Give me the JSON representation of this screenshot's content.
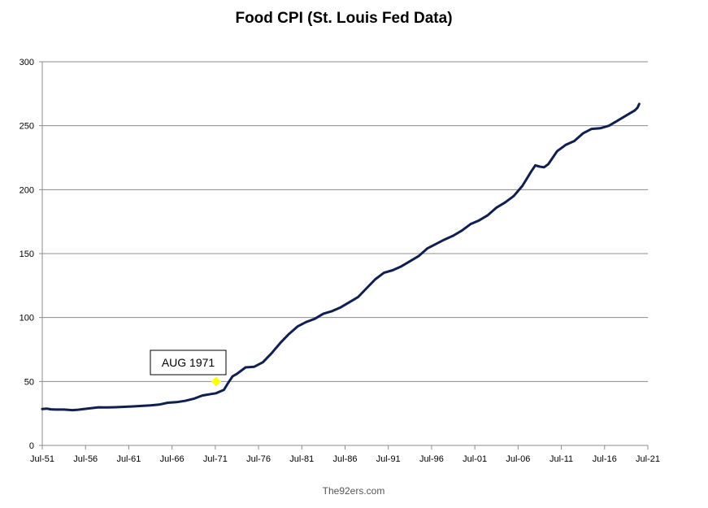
{
  "chart_data": {
    "type": "line",
    "title": "Food CPI (St. Louis Fed Data)",
    "xlabel": "",
    "ylabel": "",
    "ylim": [
      0,
      300
    ],
    "yticks": [
      0,
      50,
      100,
      150,
      200,
      250,
      300
    ],
    "xlim": [
      1951.5,
      2021.5
    ],
    "xticks": [
      "Jul-51",
      "Jul-56",
      "Jul-61",
      "Jul-66",
      "Jul-71",
      "Jul-76",
      "Jul-81",
      "Jul-86",
      "Jul-91",
      "Jul-96",
      "Jul-01",
      "Jul-06",
      "Jul-11",
      "Jul-16",
      "Jul-21"
    ],
    "grid": true,
    "legend": "none",
    "line_color": "#0f1f52",
    "series": [
      {
        "x": [
          1951.5,
          1952.0,
          1952.5,
          1953.0,
          1954.0,
          1955.0,
          1955.5,
          1956.0,
          1957.0,
          1958.0,
          1959.0,
          1960.0,
          1961.0,
          1962.0,
          1963.0,
          1964.0,
          1965.0,
          1966.0,
          1967.0,
          1968.0,
          1969.0,
          1970.0,
          1971.0,
          1971.6,
          1972.0,
          1972.5,
          1973.0,
          1973.5,
          1974.0,
          1974.5,
          1975.0,
          1976.0,
          1977.0,
          1978.0,
          1979.0,
          1980.0,
          1981.0,
          1982.0,
          1983.0,
          1984.0,
          1985.0,
          1986.0,
          1987.0,
          1988.0,
          1989.0,
          1990.0,
          1991.0,
          1992.0,
          1993.0,
          1994.0,
          1995.0,
          1996.0,
          1997.0,
          1998.0,
          1999.0,
          2000.0,
          2001.0,
          2002.0,
          2003.0,
          2004.0,
          2005.0,
          2006.0,
          2007.0,
          2008.0,
          2008.5,
          2009.0,
          2009.5,
          2010.0,
          2011.0,
          2012.0,
          2013.0,
          2014.0,
          2015.0,
          2016.0,
          2017.0,
          2018.0,
          2019.0,
          2020.0,
          2020.3,
          2020.5
        ],
        "values": [
          28.5,
          28.8,
          28.2,
          28.0,
          28.0,
          27.6,
          27.8,
          28.2,
          29.0,
          29.8,
          29.7,
          29.9,
          30.2,
          30.5,
          30.9,
          31.3,
          31.9,
          33.4,
          33.8,
          34.8,
          36.5,
          39.0,
          40.2,
          40.8,
          42.0,
          43.5,
          49.0,
          54.0,
          56.0,
          58.5,
          61.0,
          61.5,
          65.0,
          72.0,
          80.0,
          87.0,
          93.0,
          96.5,
          99.0,
          103.0,
          105.0,
          108.0,
          112.0,
          116.0,
          123.0,
          130.0,
          135.0,
          137.0,
          140.0,
          144.0,
          148.0,
          154.0,
          157.5,
          161.0,
          164.0,
          168.0,
          173.0,
          176.0,
          180.0,
          186.0,
          190.0,
          195.0,
          203.0,
          214.0,
          219.0,
          218.0,
          217.5,
          220.0,
          230.0,
          235.0,
          238.0,
          244.0,
          247.5,
          248.0,
          250.0,
          254.0,
          258.0,
          262.0,
          264.0,
          267.0
        ]
      }
    ],
    "annotations": [
      {
        "label": "AUG 1971",
        "x": 1971.6,
        "y": 50,
        "marker_color": "#ffff00"
      }
    ]
  },
  "credit": "The92ers.com"
}
